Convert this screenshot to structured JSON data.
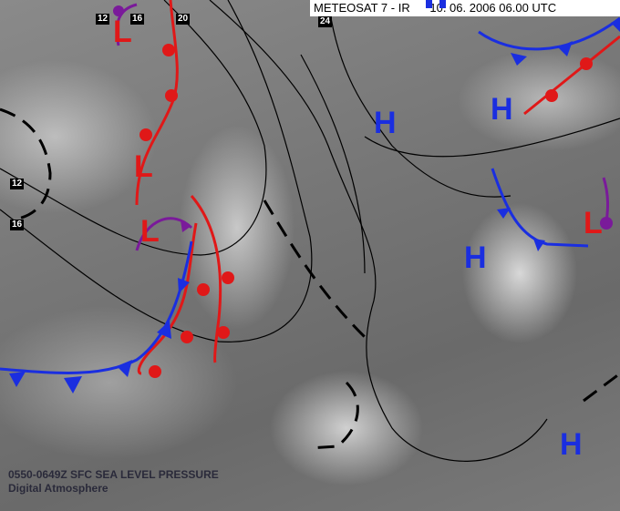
{
  "header": {
    "title": "METEOSAT 7 - IR",
    "datetime": "10. 06. 2006 06.00 UTC"
  },
  "caption": {
    "line1": "0550-0649Z SFC SEA LEVEL PRESSURE",
    "line2": "Digital Atmosphere"
  },
  "pressure_centers": {
    "highs": [
      "H",
      "H",
      "H",
      "H"
    ],
    "lows": [
      "L",
      "L",
      "L",
      "L"
    ]
  },
  "isobar_labels": [
    "12",
    "16",
    "20",
    "24",
    "12",
    "16"
  ],
  "colors": {
    "high": "#1a2ee0",
    "low": "#e01818",
    "cold_front": "#1a2ee0",
    "warm_front": "#e01818",
    "occluded_front": "#7a1a9a",
    "isobar": "#000000"
  }
}
